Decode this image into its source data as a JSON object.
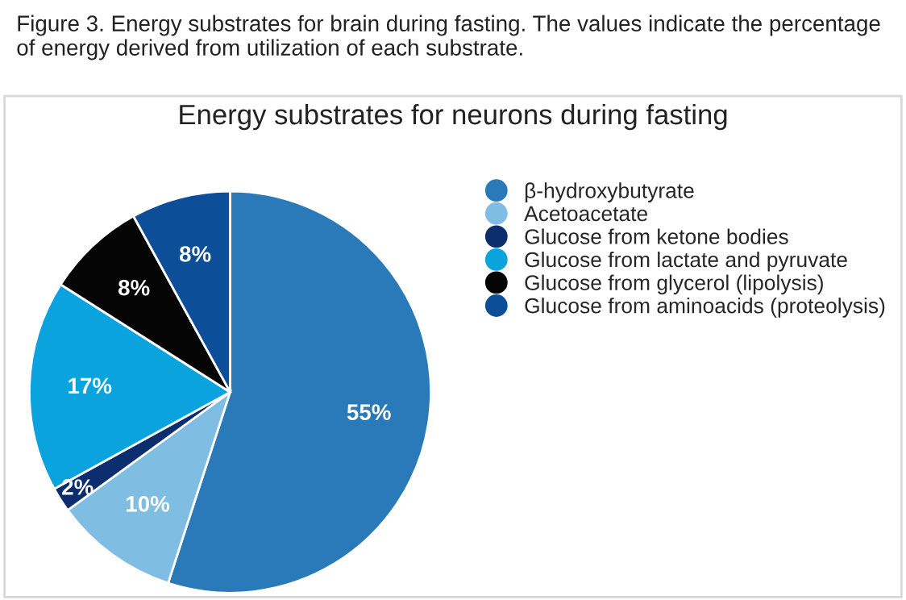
{
  "chart_data": {
    "type": "pie",
    "title": "Energy substrates for neurons during fasting",
    "annotations": [
      "Figure 3. Energy substrates for brain during fasting. The values indicate the percentage of energy derived from utilization of each substrate."
    ],
    "categories": [
      "β-hydroxybutyrate",
      "Acetoacetate",
      "Glucose from ketone bodies",
      "Glucose from lactate and pyruvate",
      "Glucose from glycerol (lipolysis)",
      "Glucose from aminoacids (proteolysis)"
    ],
    "values": [
      55,
      10,
      2,
      17,
      8,
      8
    ],
    "value_labels": [
      "55%",
      "10%",
      "2%",
      "17%",
      "8%",
      "8%"
    ],
    "colors": [
      "#2a7ab9",
      "#7fbde3",
      "#0d2e6e",
      "#0ba3dd",
      "#050505",
      "#0c4f98"
    ],
    "legend": "right"
  }
}
